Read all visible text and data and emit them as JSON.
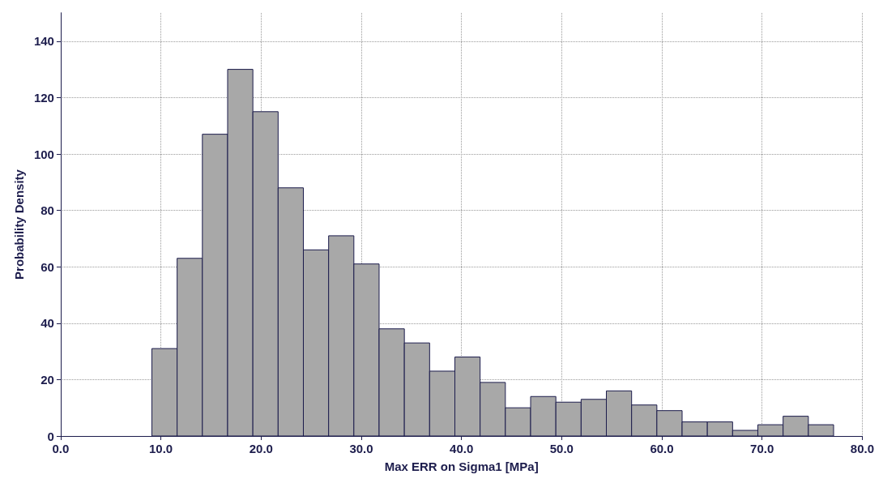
{
  "chart_data": {
    "type": "histogram",
    "xlabel": "Max ERR on Sigma1 [MPa]",
    "ylabel": "Probability Density",
    "color": "#a8a8a8",
    "bins": [
      9.1,
      11.62,
      14.14,
      16.66,
      19.18,
      21.7,
      24.22,
      26.74,
      29.26,
      31.78,
      34.3,
      36.82,
      39.34,
      41.86,
      44.38,
      46.9,
      49.42,
      51.94,
      54.46,
      56.98,
      59.5,
      62.02,
      64.54,
      67.06,
      69.58,
      72.1,
      74.62,
      77.14
    ],
    "values": [
      31,
      63,
      107,
      130,
      115,
      88,
      66,
      71,
      61,
      38,
      33,
      23,
      28,
      19,
      10,
      14,
      12,
      13,
      16,
      11,
      9,
      5,
      5,
      2,
      4,
      7,
      4
    ],
    "xlim": [
      0,
      80
    ],
    "xticks": [
      {
        "value": 0,
        "label": "0.0"
      },
      {
        "value": 10,
        "label": "10.0"
      },
      {
        "value": 20,
        "label": "20.0"
      },
      {
        "value": 30,
        "label": "30.0"
      },
      {
        "value": 40,
        "label": "40.0"
      },
      {
        "value": 50,
        "label": "50.0"
      },
      {
        "value": 60,
        "label": "60.0"
      },
      {
        "value": 70,
        "label": "70.0"
      },
      {
        "value": 80,
        "label": "80.0"
      }
    ],
    "ylim": [
      0,
      150
    ],
    "yticks": [
      0,
      20,
      40,
      60,
      80,
      100,
      120,
      140
    ],
    "grid": true
  }
}
